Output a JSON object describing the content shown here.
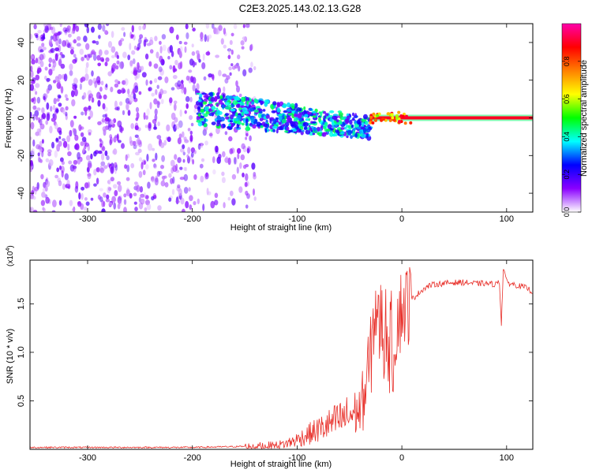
{
  "title": "C2E3.2025.143.02.13.G28",
  "chart_data": [
    {
      "type": "heatmap",
      "xlabel": "Height of straight line (km)",
      "ylabel": "Frequency (Hz)",
      "xlim": [
        -355,
        125
      ],
      "ylim": [
        -50,
        50
      ],
      "xticks": [
        "-300",
        "-200",
        "-100",
        "0",
        "100"
      ],
      "yticks": [
        "40",
        "20",
        "0",
        "-20",
        "-40"
      ],
      "colorbar": {
        "label": "Normalized spectral amplitude",
        "range": [
          0.0,
          1.0
        ],
        "ticks": [
          "0.0",
          "0.2",
          "0.4",
          "0.6",
          "0.8"
        ],
        "colormap": [
          "#ffffff",
          "#8a00ff",
          "#0000ff",
          "#00ffff",
          "#00ff00",
          "#ffff00",
          "#ff8000",
          "#ff0000",
          "#ff00aa"
        ]
      },
      "regions": [
        {
          "x": [
            -355,
            -140
          ],
          "freq_spread": 50,
          "amplitude": 0.15,
          "description": "noise"
        },
        {
          "x": [
            -195,
            -30
          ],
          "freq_center_start": 5,
          "freq_center_end": -5,
          "amplitude": 0.3
        },
        {
          "x": [
            -30,
            125
          ],
          "freq_center": 0,
          "amplitude": 0.9
        }
      ]
    },
    {
      "type": "line",
      "xlabel": "Height of straight line (km)",
      "ylabel": "SNR (10 * v/v)",
      "y_multiplier": "(x10",
      "y_multiplier_exp": "4",
      "y_multiplier_close": ")",
      "xlim": [
        -355,
        125
      ],
      "ylim": [
        0,
        1.95
      ],
      "xticks": [
        "-300",
        "-200",
        "-100",
        "0",
        "100"
      ],
      "yticks": [
        "0.5",
        "1.0",
        "1.5"
      ],
      "color": "#e8302a",
      "series": [
        {
          "x": [
            -355,
            -300,
            -250,
            -200,
            -150,
            -120,
            -110,
            -100,
            -90,
            -80,
            -70,
            -60,
            -50,
            -40,
            -35,
            -30,
            -27,
            -25,
            -22,
            -20,
            -17,
            -15,
            -12,
            -10,
            -8,
            -5,
            0,
            5,
            10,
            15,
            20,
            25,
            30,
            40,
            50,
            60,
            70,
            80,
            90,
            93,
            95,
            97,
            100,
            110,
            120,
            125
          ],
          "y": [
            0.02,
            0.02,
            0.02,
            0.02,
            0.03,
            0.04,
            0.06,
            0.1,
            0.15,
            0.2,
            0.25,
            0.3,
            0.35,
            0.4,
            0.6,
            0.9,
            1.3,
            1.5,
            1.2,
            1.4,
            1.1,
            1.3,
            1.0,
            1.2,
            0.9,
            1.35,
            1.45,
            1.5,
            1.55,
            1.6,
            1.65,
            1.68,
            1.7,
            1.71,
            1.72,
            1.72,
            1.71,
            1.71,
            1.7,
            1.75,
            1.3,
            1.9,
            1.72,
            1.69,
            1.66,
            1.62
          ]
        }
      ]
    }
  ]
}
